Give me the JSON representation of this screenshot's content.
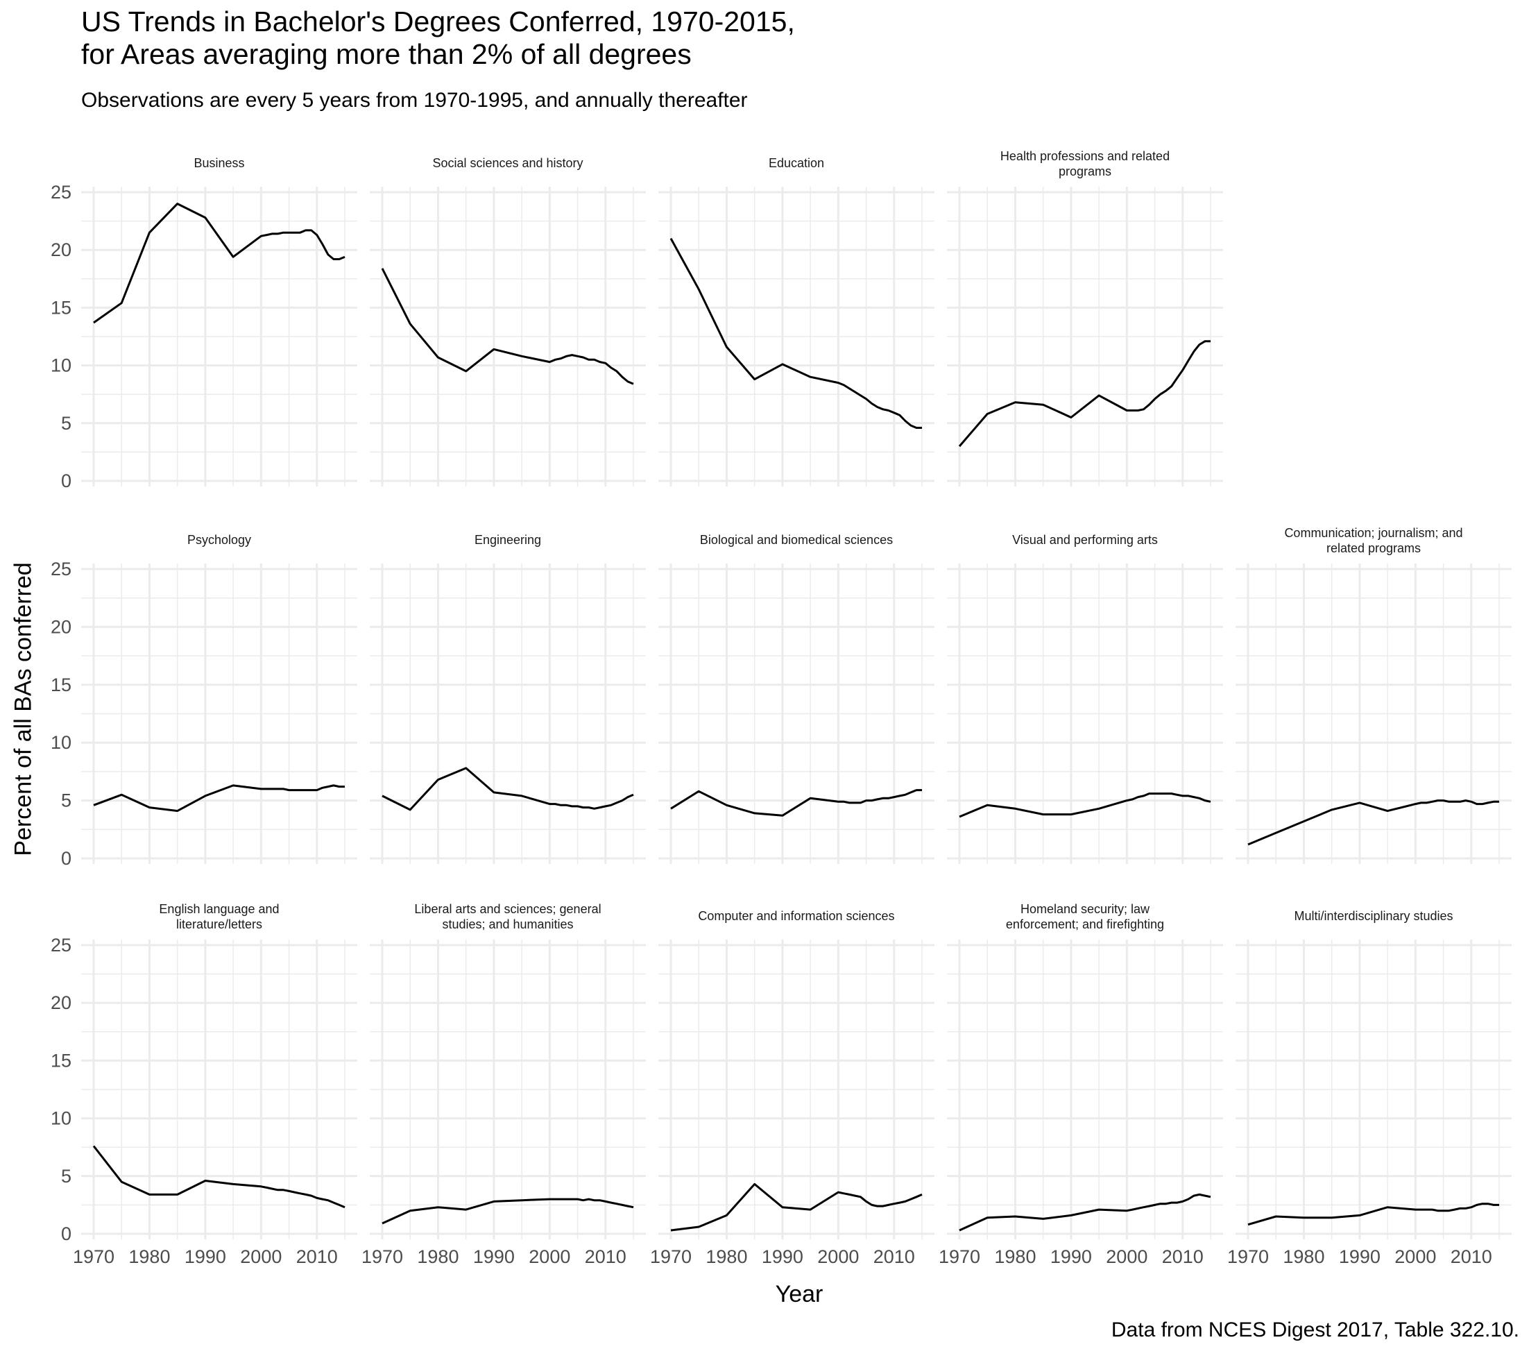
{
  "chart_data": {
    "type": "line",
    "title": "US Trends in Bachelor's Degrees Conferred, 1970-2015,\nfor Areas averaging more than 2% of all degrees",
    "subtitle": "Observations are every 5 years from 1970-1995, and annually thereafter",
    "xlabel": "Year",
    "ylabel": "Percent of all BAs conferred",
    "caption": "Data from NCES Digest 2017, Table 322.10.",
    "xlim": [
      1970,
      2015
    ],
    "ylim": [
      0,
      25
    ],
    "x_ticks": [
      1970,
      1980,
      1990,
      2000,
      2010
    ],
    "y_ticks": [
      0,
      5,
      10,
      15,
      20,
      25
    ],
    "grid": true,
    "legend": "none",
    "facet_layout": {
      "rows": 3,
      "cols": 5
    },
    "x": [
      1970,
      1975,
      1980,
      1985,
      1990,
      1995,
      2000,
      2001,
      2002,
      2003,
      2004,
      2005,
      2006,
      2007,
      2008,
      2009,
      2010,
      2011,
      2012,
      2013,
      2014,
      2015
    ],
    "series": [
      {
        "name": "Business",
        "row": 1,
        "col": 1,
        "strip_lines": [
          "Business"
        ],
        "values": [
          13.7,
          15.4,
          21.5,
          24.0,
          22.8,
          19.4,
          21.2,
          21.3,
          21.4,
          21.4,
          21.5,
          21.5,
          21.5,
          21.5,
          21.7,
          21.7,
          21.3,
          20.5,
          19.6,
          19.2,
          19.2,
          19.4
        ]
      },
      {
        "name": "Social sciences and history",
        "row": 1,
        "col": 2,
        "strip_lines": [
          "Social sciences and history"
        ],
        "values": [
          18.4,
          13.6,
          10.7,
          9.5,
          11.4,
          10.8,
          10.3,
          10.5,
          10.6,
          10.8,
          10.9,
          10.8,
          10.7,
          10.5,
          10.5,
          10.3,
          10.2,
          9.8,
          9.5,
          9.0,
          8.6,
          8.4
        ]
      },
      {
        "name": "Education",
        "row": 1,
        "col": 3,
        "strip_lines": [
          "Education"
        ],
        "values": [
          21.0,
          16.6,
          11.6,
          8.8,
          10.1,
          9.0,
          8.5,
          8.3,
          8.0,
          7.7,
          7.4,
          7.1,
          6.7,
          6.4,
          6.2,
          6.1,
          5.9,
          5.7,
          5.2,
          4.8,
          4.6,
          4.6
        ]
      },
      {
        "name": "Health professions and related programs",
        "row": 1,
        "col": 4,
        "strip_lines": [
          "Health professions and related",
          "programs"
        ],
        "values": [
          3.0,
          5.8,
          6.8,
          6.6,
          5.5,
          7.4,
          6.1,
          6.1,
          6.1,
          6.2,
          6.6,
          7.1,
          7.5,
          7.8,
          8.2,
          8.9,
          9.6,
          10.4,
          11.2,
          11.8,
          12.1,
          12.1
        ]
      },
      {
        "name": "Psychology",
        "row": 2,
        "col": 1,
        "strip_lines": [
          "Psychology"
        ],
        "values": [
          4.6,
          5.5,
          4.4,
          4.1,
          5.4,
          6.3,
          6.0,
          6.0,
          6.0,
          6.0,
          6.0,
          5.9,
          5.9,
          5.9,
          5.9,
          5.9,
          5.9,
          6.1,
          6.2,
          6.3,
          6.2,
          6.2
        ]
      },
      {
        "name": "Engineering",
        "row": 2,
        "col": 2,
        "strip_lines": [
          "Engineering"
        ],
        "values": [
          5.4,
          4.2,
          6.8,
          7.8,
          5.7,
          5.4,
          4.7,
          4.7,
          4.6,
          4.6,
          4.5,
          4.5,
          4.4,
          4.4,
          4.3,
          4.4,
          4.5,
          4.6,
          4.8,
          5.0,
          5.3,
          5.5
        ]
      },
      {
        "name": "Biological and biomedical sciences",
        "row": 2,
        "col": 3,
        "strip_lines": [
          "Biological and biomedical sciences"
        ],
        "values": [
          4.3,
          5.8,
          4.6,
          3.9,
          3.7,
          5.2,
          4.9,
          4.9,
          4.8,
          4.8,
          4.8,
          5.0,
          5.0,
          5.1,
          5.2,
          5.2,
          5.3,
          5.4,
          5.5,
          5.7,
          5.9,
          5.9
        ]
      },
      {
        "name": "Visual and performing arts",
        "row": 2,
        "col": 4,
        "strip_lines": [
          "Visual and performing arts"
        ],
        "values": [
          3.6,
          4.6,
          4.3,
          3.8,
          3.8,
          4.3,
          5.0,
          5.1,
          5.3,
          5.4,
          5.6,
          5.6,
          5.6,
          5.6,
          5.6,
          5.5,
          5.4,
          5.4,
          5.3,
          5.2,
          5.0,
          4.9
        ]
      },
      {
        "name": "Communication; journalism; and related programs",
        "row": 2,
        "col": 5,
        "strip_lines": [
          "Communication; journalism; and",
          "related programs"
        ],
        "values": [
          1.2,
          2.2,
          3.2,
          4.2,
          4.8,
          4.1,
          4.7,
          4.8,
          4.8,
          4.9,
          5.0,
          5.0,
          4.9,
          4.9,
          4.9,
          5.0,
          4.9,
          4.7,
          4.7,
          4.8,
          4.9,
          4.9
        ]
      },
      {
        "name": "English language and literature/letters",
        "row": 3,
        "col": 1,
        "strip_lines": [
          "English language and",
          "literature/letters"
        ],
        "values": [
          7.6,
          4.5,
          3.4,
          3.4,
          4.6,
          4.3,
          4.1,
          4.0,
          3.9,
          3.8,
          3.8,
          3.7,
          3.6,
          3.5,
          3.4,
          3.3,
          3.1,
          3.0,
          2.9,
          2.7,
          2.5,
          2.3
        ]
      },
      {
        "name": "Liberal arts and sciences; general studies; and humanities",
        "row": 3,
        "col": 2,
        "strip_lines": [
          "Liberal arts and sciences; general",
          "studies; and humanities"
        ],
        "values": [
          0.9,
          2.0,
          2.3,
          2.1,
          2.8,
          2.9,
          3.0,
          3.0,
          3.0,
          3.0,
          3.0,
          3.0,
          2.9,
          3.0,
          2.9,
          2.9,
          2.8,
          2.7,
          2.6,
          2.5,
          2.4,
          2.3
        ]
      },
      {
        "name": "Computer and information sciences",
        "row": 3,
        "col": 3,
        "strip_lines": [
          "Computer and information sciences"
        ],
        "values": [
          0.3,
          0.6,
          1.6,
          4.3,
          2.3,
          2.1,
          3.6,
          3.5,
          3.4,
          3.3,
          3.2,
          2.8,
          2.5,
          2.4,
          2.4,
          2.5,
          2.6,
          2.7,
          2.8,
          3.0,
          3.2,
          3.4
        ]
      },
      {
        "name": "Homeland security; law enforcement; and firefighting",
        "row": 3,
        "col": 4,
        "strip_lines": [
          "Homeland security; law",
          "enforcement; and firefighting"
        ],
        "values": [
          0.3,
          1.4,
          1.5,
          1.3,
          1.6,
          2.1,
          2.0,
          2.1,
          2.2,
          2.3,
          2.4,
          2.5,
          2.6,
          2.6,
          2.7,
          2.7,
          2.8,
          3.0,
          3.3,
          3.4,
          3.3,
          3.2
        ]
      },
      {
        "name": "Multi/interdisciplinary studies",
        "row": 3,
        "col": 5,
        "strip_lines": [
          "Multi/interdisciplinary studies"
        ],
        "values": [
          0.8,
          1.5,
          1.4,
          1.4,
          1.6,
          2.3,
          2.1,
          2.1,
          2.1,
          2.1,
          2.0,
          2.0,
          2.0,
          2.1,
          2.2,
          2.2,
          2.3,
          2.5,
          2.6,
          2.6,
          2.5,
          2.5
        ]
      }
    ]
  }
}
